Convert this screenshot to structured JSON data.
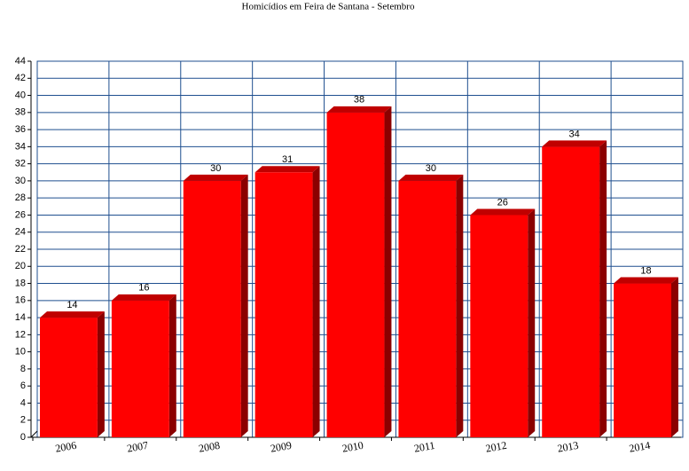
{
  "chart_data": {
    "type": "bar",
    "title": "Homicídios em Feira de Santana - Setembro",
    "categories": [
      "2006",
      "2007",
      "2008",
      "2009",
      "2010",
      "2011",
      "2012",
      "2013",
      "2014"
    ],
    "values": [
      14,
      16,
      30,
      31,
      38,
      30,
      26,
      34,
      18
    ],
    "color": "#ff0000",
    "ylim": [
      0,
      44
    ],
    "yticks": [
      0,
      2,
      4,
      6,
      8,
      10,
      12,
      14,
      16,
      18,
      20,
      22,
      24,
      26,
      28,
      30,
      32,
      34,
      36,
      38,
      40,
      42,
      44
    ],
    "grid": true
  }
}
